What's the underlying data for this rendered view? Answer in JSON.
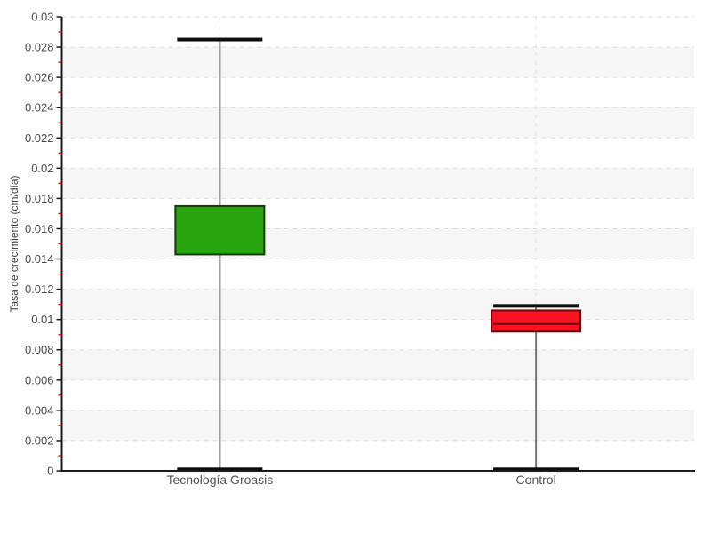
{
  "chart_data": {
    "type": "boxplot",
    "title": "",
    "xlabel": "",
    "ylabel": "Tasa de crecimiento (cm/día)",
    "ylim": [
      0,
      0.03
    ],
    "ytick_step": 0.002,
    "ytick_labels": [
      "0",
      "0.002",
      "0.004",
      "0.006",
      "0.008",
      "0.01",
      "0.012",
      "0.014",
      "0.016",
      "0.018",
      "0.02",
      "0.022",
      "0.024",
      "0.026",
      "0.028",
      "0.03"
    ],
    "minor_tick_step": 0.001,
    "grid": {
      "horizontal_dashed_every": 0.002,
      "zebra_bands_start_at_odd_multiples_of": 0.002,
      "vertical_dashed_at_category_centers": true
    },
    "legend": "none",
    "categories": [
      "Tecnología Groasis",
      "Control"
    ],
    "series": [
      {
        "name": "Tecnología Groasis",
        "whisker_low": 0.0001,
        "q1": 0.0143,
        "median": null,
        "q3": 0.0175,
        "whisker_high": 0.0285,
        "fill_color": "#28a40f",
        "border_color": "#143c08"
      },
      {
        "name": "Control",
        "whisker_low": 0.0001,
        "q1": 0.0092,
        "median": 0.0097,
        "q3": 0.0106,
        "whisker_high": 0.0109,
        "fill_color": "#f9121f",
        "border_color": "#70050d"
      }
    ],
    "style_colors": {
      "band_fill": "#f6f6f6",
      "grid_dash": "#dedede",
      "vertical_grid_dash": "#e4e4e4",
      "axis": "#1a1a1a",
      "major_tick": "#1a1a1a",
      "minor_tick": "#cc1111",
      "whisker_line": "#757575",
      "whisker_cap": "#0d0d0d",
      "tick_text": "#4a4a4a",
      "category_text": "#555555",
      "axis_label_text": "#454545"
    }
  }
}
